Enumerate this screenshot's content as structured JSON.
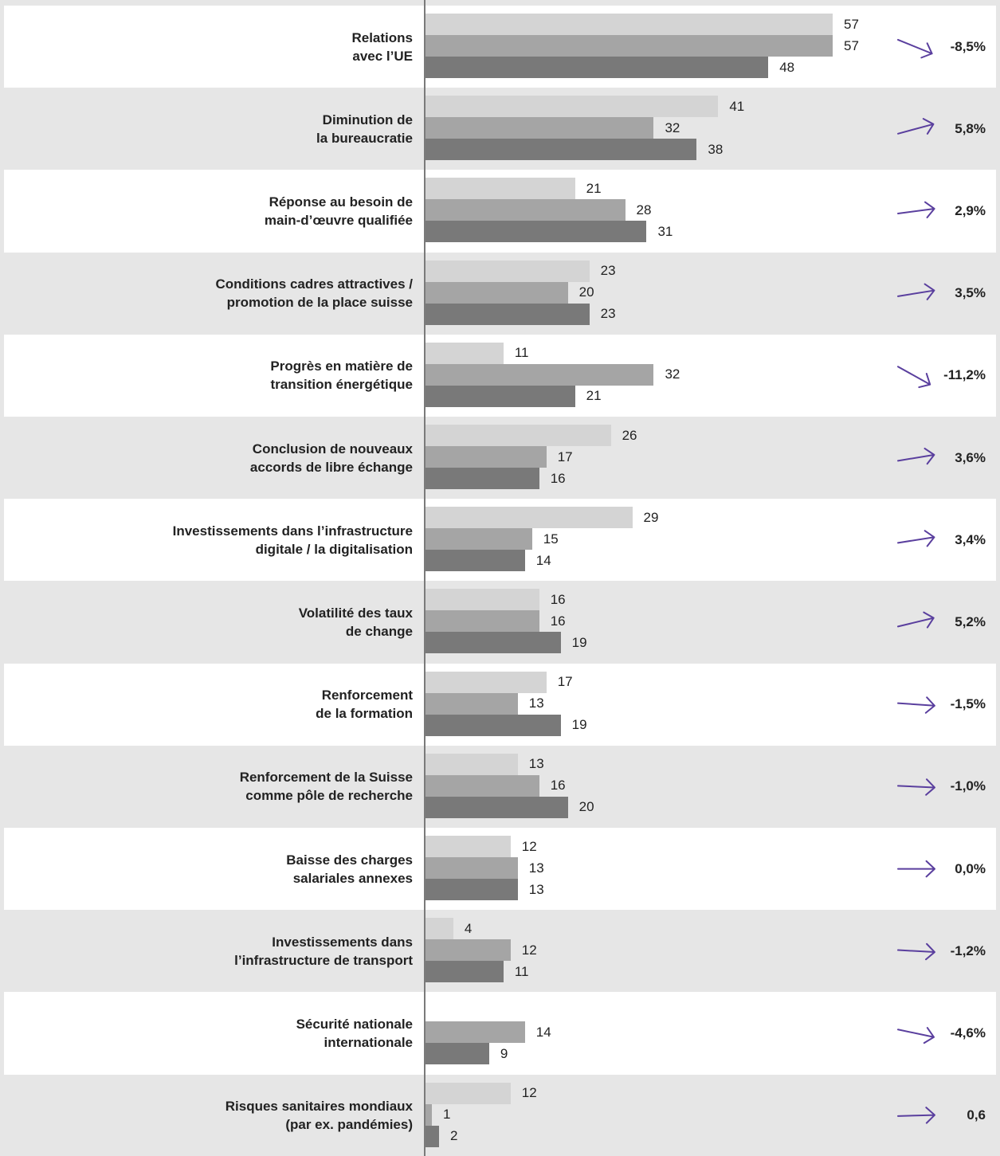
{
  "chart_data": {
    "type": "hbar",
    "categories": [
      "Relations\navec l’UE",
      "Diminution de\nla bureaucratie",
      "Réponse au besoin de\nmain-d’œuvre qualifiée",
      "Conditions cadres attractives /\npromotion de la place suisse",
      "Progrès en matière de\ntransition énergétique",
      "Conclusion de nouveaux\naccords de libre échange",
      "Investissements dans l’infrastructure\ndigitale / la digitalisation",
      "Volatilité des taux\nde change",
      "Renforcement\nde la formation",
      "Renforcement de la Suisse\ncomme pôle de recherche",
      "Baisse des charges\nsalariales annexes",
      "Investissements dans\nl’infrastructure de transport",
      "Sécurité nationale\ninternationale",
      "Risques sanitaires mondiaux\n(par ex. pandémies)"
    ],
    "series": [
      {
        "color": "#d4d4d4",
        "values": [
          57,
          41,
          21,
          23,
          11,
          26,
          29,
          16,
          17,
          13,
          12,
          4,
          null,
          12
        ]
      },
      {
        "color": "#a5a5a5",
        "values": [
          57,
          32,
          28,
          20,
          32,
          17,
          15,
          16,
          13,
          16,
          13,
          12,
          14,
          1
        ]
      },
      {
        "color": "#797979",
        "values": [
          48,
          38,
          31,
          23,
          21,
          16,
          14,
          19,
          19,
          20,
          13,
          11,
          9,
          2
        ]
      }
    ],
    "change_values": [
      -8.5,
      5.8,
      2.9,
      3.5,
      -11.2,
      3.6,
      3.4,
      5.2,
      -1.5,
      -1.0,
      0.0,
      -1.2,
      -4.6,
      0.6
    ],
    "change_labels": [
      "-8,5%",
      "5,8%",
      "2,9%",
      "3,5%",
      "-11,2%",
      "3,6%",
      "3,4%",
      "5,2%",
      "-1,5%",
      "-1,0%",
      "0,0%",
      "-1,2%",
      "-4,6%",
      "0,6"
    ],
    "arrow_color": "#5a3f9e",
    "xlim": [
      0,
      60
    ]
  }
}
